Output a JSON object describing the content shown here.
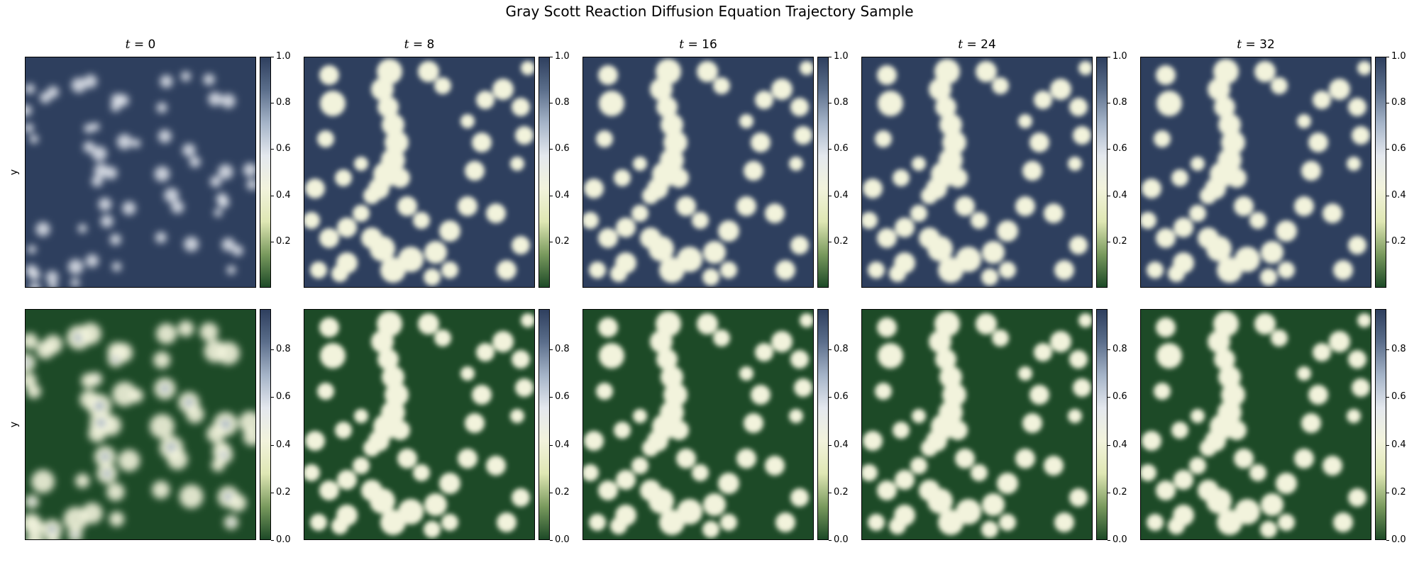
{
  "chart_data": {
    "type": "heatmap",
    "title": "Gray Scott Reaction Diffusion Equation Trajectory Sample",
    "columns": [
      {
        "title_var": "t",
        "title_value": "0"
      },
      {
        "title_var": "t",
        "title_value": "8"
      },
      {
        "title_var": "t",
        "title_value": "16"
      },
      {
        "title_var": "t",
        "title_value": "24"
      },
      {
        "title_var": "t",
        "title_value": "32"
      }
    ],
    "rows": [
      {
        "ylabel": "y",
        "colorbar": {
          "vmin": 0.0,
          "vmax": 1.0,
          "ticks": [
            "0.2",
            "0.4",
            "0.6",
            "0.8",
            "1.0"
          ],
          "tick_values": [
            0.2,
            0.4,
            0.6,
            0.8,
            1.0
          ]
        }
      },
      {
        "ylabel": "y",
        "colorbar": {
          "vmin": 0.0,
          "vmax": 0.97,
          "ticks": [
            "0.0",
            "0.2",
            "0.4",
            "0.6",
            "0.8"
          ],
          "tick_values": [
            0.0,
            0.2,
            0.4,
            0.6,
            0.8
          ]
        }
      }
    ],
    "colormap": [
      "#1d4a27",
      "#7a9a5e",
      "#dfe7b4",
      "#f2f3dc",
      "#e4e8ee",
      "#a5b4c8",
      "#5c6f8c",
      "#2e3f5e"
    ],
    "grid": false,
    "legend": "none"
  }
}
